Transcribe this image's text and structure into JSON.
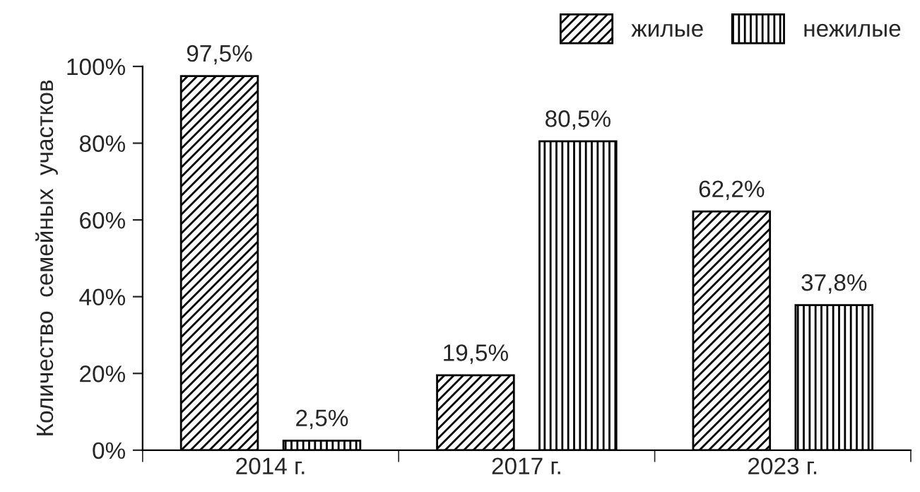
{
  "chart_data": {
    "type": "bar",
    "ylabel": "Количество  семейных  участков",
    "categories": [
      "2014 г.",
      "2017 г.",
      "2023 г."
    ],
    "series": [
      {
        "name": "жилые",
        "color": "#000000",
        "values": [
          97.5,
          19.5,
          62.2
        ],
        "value_labels": [
          "97,5%",
          "19,5%",
          "62,2%"
        ]
      },
      {
        "name": "нежилые",
        "color": "#000000",
        "values": [
          2.5,
          80.5,
          37.8
        ],
        "value_labels": [
          "2,5%",
          "80,5%",
          "37,8%"
        ]
      }
    ],
    "ylim": [
      0,
      100
    ],
    "yticks": [
      {
        "value": 0,
        "label": "0%"
      },
      {
        "value": 20,
        "label": "20%"
      },
      {
        "value": 40,
        "label": "40%"
      },
      {
        "value": 60,
        "label": "60%"
      },
      {
        "value": 80,
        "label": "80%"
      },
      {
        "value": 100,
        "label": "100%"
      }
    ],
    "grid": false,
    "legend": "top right"
  }
}
